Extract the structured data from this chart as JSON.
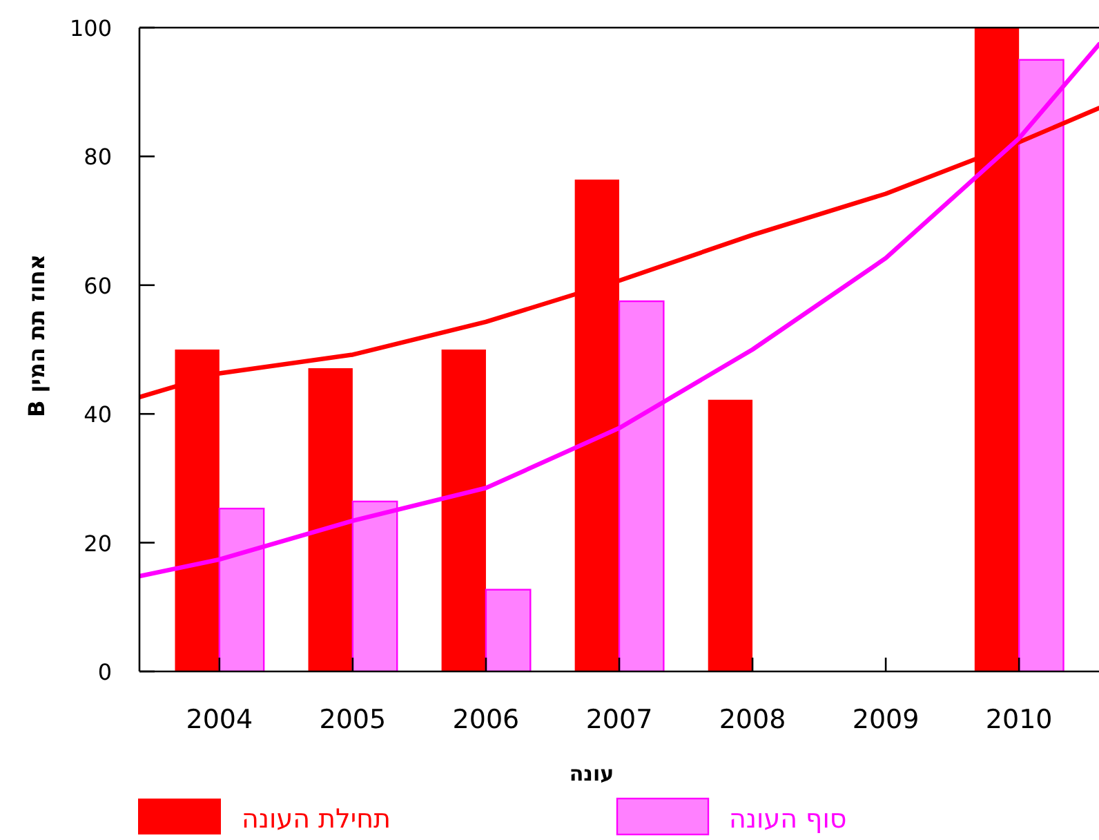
{
  "chart_data": {
    "type": "bar",
    "xlabel": "עונה",
    "ylabel": "אחוז תת המין B",
    "x": [
      2004,
      2005,
      2006,
      2007,
      2008,
      2009,
      2010
    ],
    "xlim": [
      2003.4,
      2010.6
    ],
    "xticks": [
      2004,
      2005,
      2006,
      2007,
      2008,
      2009,
      2010
    ],
    "ylim": [
      0,
      100
    ],
    "yticks": [
      0,
      20,
      40,
      60,
      80,
      100
    ],
    "legend": "bottom",
    "series": [
      {
        "name": "תחילת העונה",
        "color": "#ff0000",
        "values": [
          50,
          47.1,
          50,
          76.4,
          42.2,
          null,
          100
        ]
      },
      {
        "name": "סוף העונה",
        "color": "#ff80ff",
        "values": [
          25.3,
          26.4,
          12.7,
          57.5,
          null,
          null,
          95
        ]
      },
      {
        "type": "line",
        "color": "#ff0000",
        "x": [
          2003.4,
          2004,
          2005,
          2006,
          2007,
          2008,
          2009,
          2010,
          2010.6
        ],
        "values": [
          42.6,
          46.3,
          49.2,
          54.3,
          60.7,
          67.8,
          74.2,
          82.2,
          87.5
        ]
      },
      {
        "type": "line",
        "color": "#ff00ff",
        "x": [
          2003.4,
          2004,
          2005,
          2006,
          2007,
          2008,
          2009,
          2010,
          2010.6
        ],
        "values": [
          14.8,
          17.4,
          23.4,
          28.5,
          37.8,
          50,
          64.2,
          82.8,
          97.4
        ]
      }
    ]
  }
}
